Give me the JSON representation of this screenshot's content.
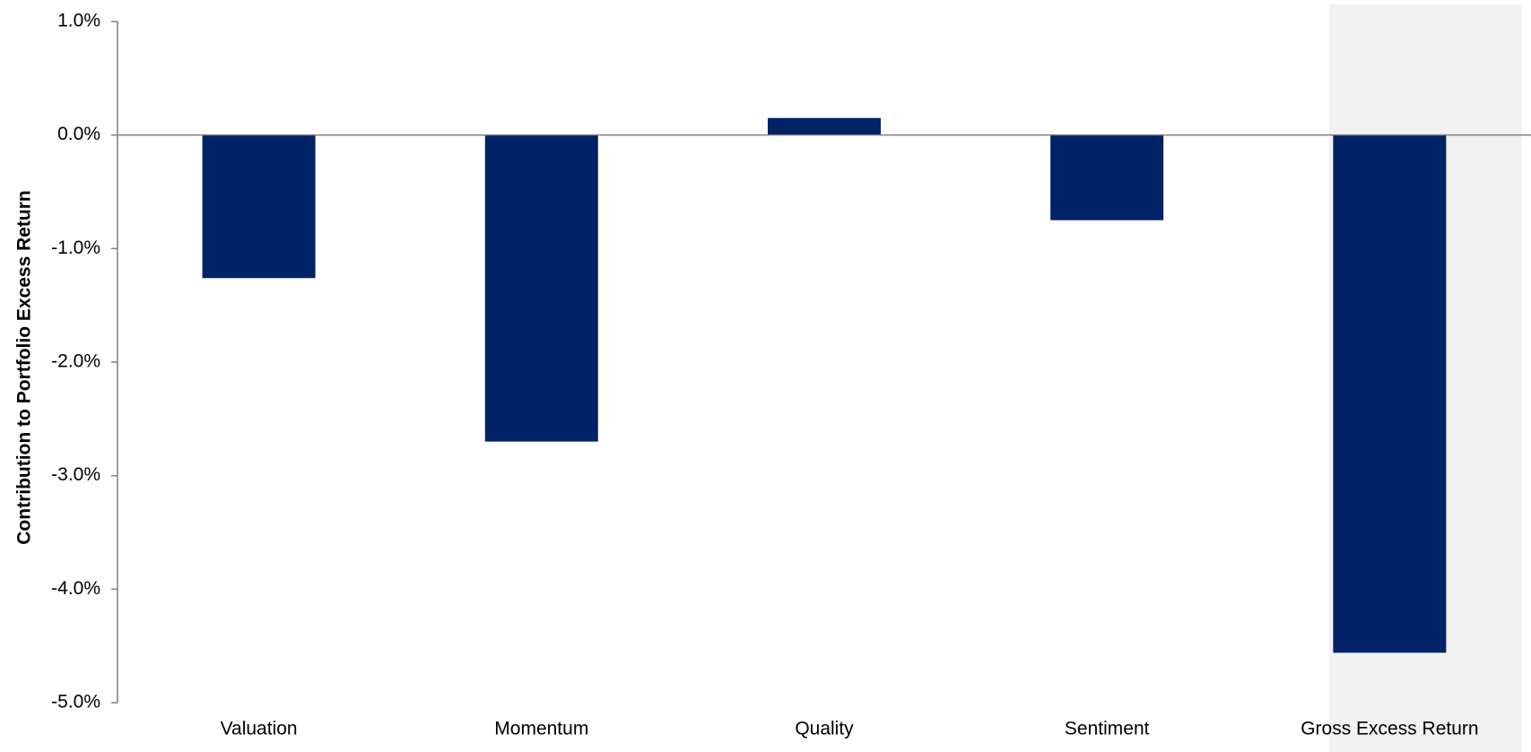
{
  "chart_data": {
    "type": "bar",
    "title": "",
    "xlabel": "",
    "ylabel": "Contribution to Portfolio Excess Return",
    "categories": [
      "Valuation",
      "Momentum",
      "Quality",
      "Sentiment",
      "Gross Excess Return"
    ],
    "values": [
      -1.26,
      -2.7,
      0.15,
      -0.75,
      -4.56
    ],
    "value_unit": "%",
    "ylim": [
      -5.0,
      1.0
    ],
    "yticks": [
      1.0,
      0.0,
      -1.0,
      -2.0,
      -3.0,
      -4.0,
      -5.0
    ],
    "ytick_labels": [
      "1.0%",
      "0.0%",
      "-1.0%",
      "-2.0%",
      "-3.0%",
      "-4.0%",
      "-5.0%"
    ],
    "grid": false,
    "legend": "none",
    "highlighted_category": "Gross Excess Return",
    "colors": {
      "bar": "#002266",
      "highlight_background": "#f2f2f2",
      "axis": "#7f7f7f"
    }
  }
}
